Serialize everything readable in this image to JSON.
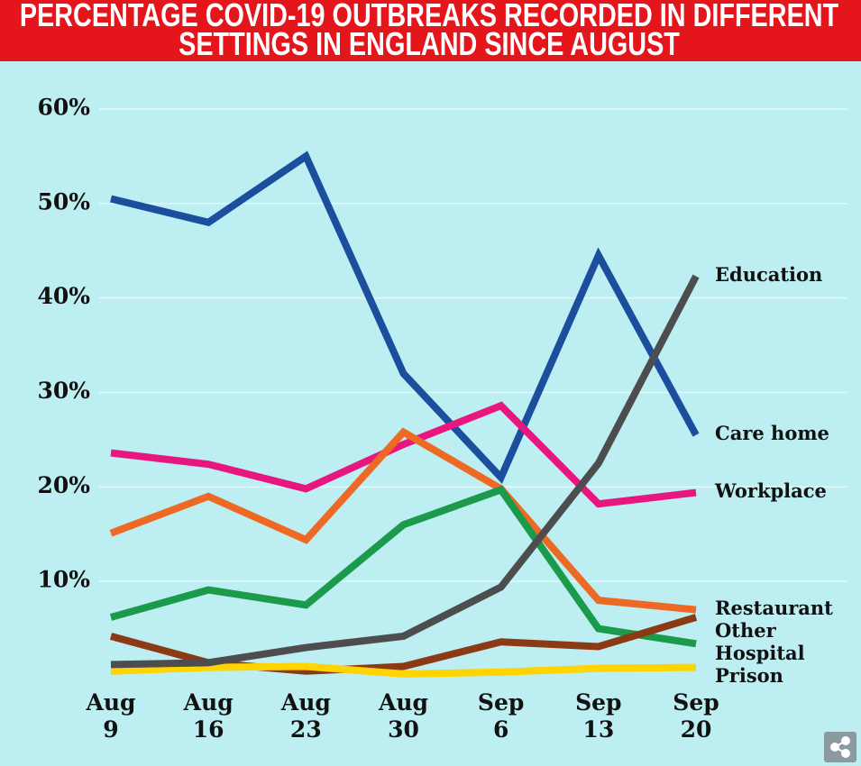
{
  "chart_data": {
    "type": "line",
    "title": "PERCENTAGE COVID-19 OUTBREAKS RECORDED IN DIFFERENT SETTINGS IN ENGLAND SINCE AUGUST",
    "categories": [
      "Aug 9",
      "Aug 16",
      "Aug 23",
      "Aug 30",
      "Sep 6",
      "Sep 13",
      "Sep 20"
    ],
    "ylim": [
      0,
      62
    ],
    "yticks": [
      {
        "value": 10,
        "label": "10%"
      },
      {
        "value": 20,
        "label": "20%"
      },
      {
        "value": 30,
        "label": "30%"
      },
      {
        "value": 40,
        "label": "40%"
      },
      {
        "value": 50,
        "label": "50%"
      },
      {
        "value": 60,
        "label": "60%"
      }
    ],
    "grid": true,
    "series": [
      {
        "name": "Care home",
        "color": "#1b4f9e",
        "values": [
          50.5,
          48,
          55,
          32,
          21,
          44.5,
          25.5
        ]
      },
      {
        "name": "Workplace",
        "color": "#e8167f",
        "values": [
          23.6,
          22.4,
          19.8,
          24.5,
          28.6,
          18.2,
          19.4
        ]
      },
      {
        "name": "Restaurant",
        "color": "#ee6a24",
        "values": [
          15.1,
          19,
          14.4,
          25.8,
          19.8,
          8,
          7
        ]
      },
      {
        "name": "Hospital",
        "color": "#1a9a4a",
        "values": [
          6.2,
          9.1,
          7.5,
          16,
          19.7,
          5,
          3.4
        ]
      },
      {
        "name": "Other",
        "color": "#8b3a14",
        "values": [
          4.2,
          1.4,
          0.5,
          1,
          3.6,
          3.1,
          6.2
        ]
      },
      {
        "name": "Prison",
        "color": "#ffd400",
        "values": [
          0.5,
          0.9,
          1,
          0.2,
          0.4,
          0.8,
          0.9
        ]
      },
      {
        "name": "Education",
        "color": "#4d4d4f",
        "values": [
          1.2,
          1.4,
          3,
          4.2,
          9.4,
          22.5,
          42.3
        ]
      }
    ]
  }
}
